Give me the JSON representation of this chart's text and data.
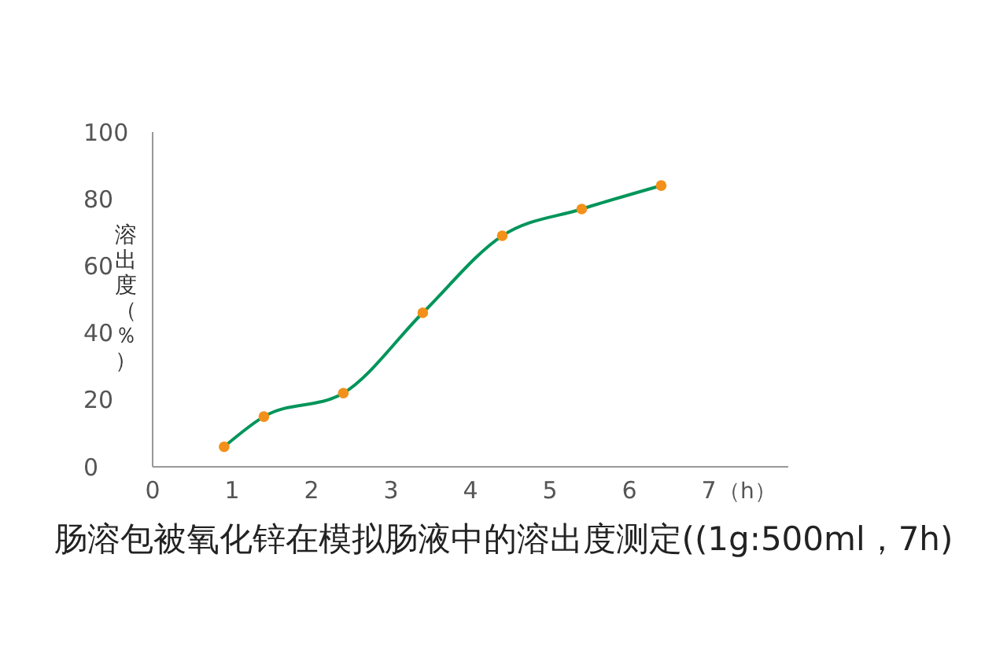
{
  "chart_data": {
    "type": "line",
    "title": "肠溶包被氧化锌在模拟肠液中的溶出度测定((1g:500ml，7h)",
    "xlabel": "（h）",
    "ylabel": "溶出度（％）",
    "x": [
      0.9,
      1.4,
      2.4,
      3.4,
      4.4,
      5.4,
      6.4
    ],
    "series": [
      {
        "color": "#00955a",
        "marker": "none",
        "values": [
          6,
          15,
          22,
          46,
          69,
          77,
          84
        ]
      },
      {
        "type": "scatter",
        "color": "#f39019",
        "values": [
          6,
          15,
          22,
          46,
          69,
          77,
          84
        ]
      }
    ],
    "marker": "circle",
    "xlim": [
      0,
      8
    ],
    "xticks": [
      0,
      1,
      2,
      3,
      4,
      5,
      6,
      7
    ],
    "ylim": [
      0,
      100
    ],
    "yticks": [
      0,
      20,
      40,
      60,
      80,
      100
    ]
  }
}
